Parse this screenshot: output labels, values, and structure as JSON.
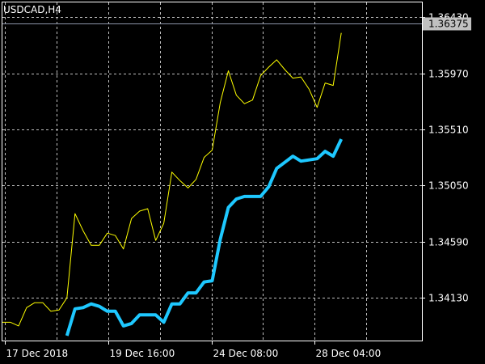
{
  "colors": {
    "background": "#000000",
    "frame": "#ffffff",
    "grid": "#c0c0c0",
    "price_line": "#ffff00",
    "indicator_line": "#1ec8ff",
    "current_price_line": "#8c94a8",
    "current_price_box": "#c0c0c0",
    "current_price_text": "#000000"
  },
  "chart_data": {
    "type": "line",
    "title": "USDCAD,H4",
    "current_price": "1.36375",
    "current_price_value": 1.36375,
    "ylim": [
      1.3378,
      1.3655
    ],
    "xlim": [
      0,
      52
    ],
    "grid": true,
    "y_ticks": [
      {
        "label": "1.36430",
        "value": 1.3643
      },
      {
        "label": "1.35970",
        "value": 1.3597
      },
      {
        "label": "1.35510",
        "value": 1.3551
      },
      {
        "label": "1.35050",
        "value": 1.3505
      },
      {
        "label": "1.34590",
        "value": 1.3459
      },
      {
        "label": "1.34130",
        "value": 1.3413
      }
    ],
    "x_ticks": [
      {
        "label": "17 Dec 2018",
        "value": 0.3
      },
      {
        "label": "19 Dec 16:00",
        "value": 13.1
      },
      {
        "label": "24 Dec 08:00",
        "value": 25.9
      },
      {
        "label": "28 Dec 04:00",
        "value": 38.7
      }
    ],
    "series": [
      {
        "key": "price",
        "color": "#ffff00",
        "width": 1,
        "x": [
          0,
          1,
          2,
          3,
          4,
          5,
          6,
          7,
          8,
          9,
          10,
          11,
          12,
          13,
          14,
          15,
          16,
          17,
          18,
          19,
          20,
          21,
          22,
          23,
          24,
          25,
          26,
          27,
          28,
          29,
          30,
          31,
          32,
          33,
          34,
          35,
          36,
          37,
          38,
          39,
          40,
          41,
          42
        ],
        "y": [
          1.3393,
          1.3393,
          1.339,
          1.3405,
          1.3409,
          1.3409,
          1.3402,
          1.3403,
          1.3413,
          1.3482,
          1.3468,
          1.3456,
          1.3456,
          1.3466,
          1.3464,
          1.3453,
          1.3478,
          1.3484,
          1.3486,
          1.346,
          1.3474,
          1.3516,
          1.3509,
          1.3503,
          1.351,
          1.3528,
          1.3534,
          1.3573,
          1.3599,
          1.3579,
          1.3572,
          1.3575,
          1.3595,
          1.3602,
          1.3608,
          1.36,
          1.3593,
          1.3594,
          1.3584,
          1.3569,
          1.3589,
          1.3587,
          1.363
        ]
      },
      {
        "key": "indicator",
        "color": "#1ec8ff",
        "width": 4,
        "x": [
          8,
          9,
          10,
          11,
          12,
          13,
          14,
          15,
          16,
          17,
          18,
          19,
          20,
          21,
          22,
          23,
          24,
          25,
          26,
          27,
          28,
          29,
          30,
          31,
          32,
          33,
          34,
          35,
          36,
          37,
          38,
          39,
          40,
          41,
          42
        ],
        "y": [
          1.3382,
          1.3404,
          1.3405,
          1.3408,
          1.3406,
          1.3402,
          1.3402,
          1.339,
          1.3392,
          1.3399,
          1.3399,
          1.3399,
          1.3393,
          1.3408,
          1.3408,
          1.3417,
          1.3417,
          1.3426,
          1.3427,
          1.3461,
          1.3487,
          1.3494,
          1.3496,
          1.3496,
          1.3496,
          1.3504,
          1.3519,
          1.3524,
          1.3529,
          1.3525,
          1.3526,
          1.3527,
          1.3533,
          1.3529,
          1.3543
        ]
      }
    ]
  }
}
